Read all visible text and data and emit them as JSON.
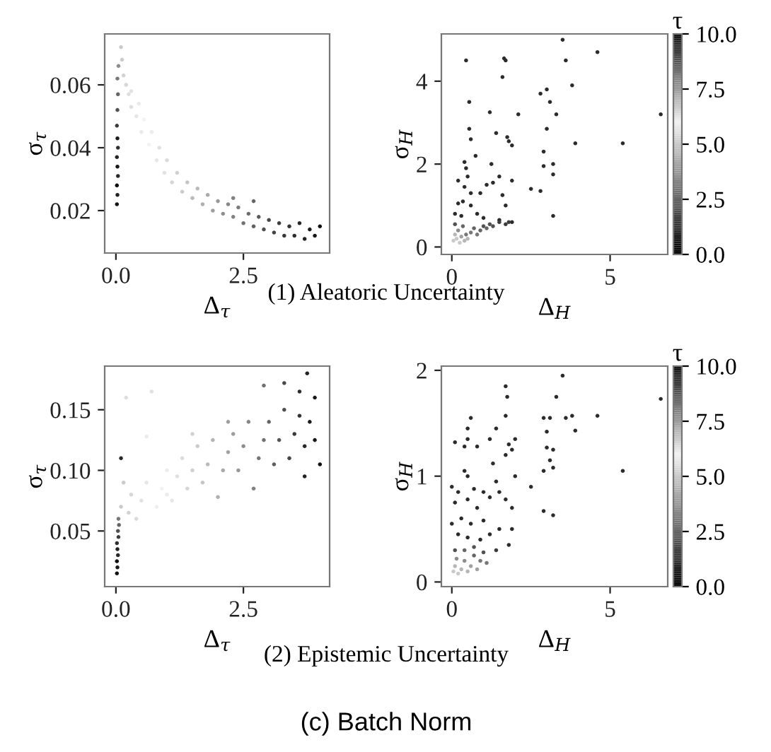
{
  "chart_data": [
    {
      "type": "scatter",
      "xlabel": "Δ$_{τ}$",
      "ylabel": "σ$_{τ}$",
      "annotations": [
        "(1) Aleatoric Uncertainty"
      ],
      "marker": "circle",
      "grid": false,
      "xlim": [
        -0.22,
        4.19
      ],
      "ylim": [
        0.0065,
        0.0762
      ],
      "xticks": [
        {
          "value": 0,
          "label": "0.0"
        },
        2.5
      ],
      "yticks": [
        0.02,
        0.04,
        0.06
      ],
      "x": [
        0.02,
        0.03,
        0.02,
        0.04,
        0.03,
        0.02,
        0.04,
        0.03,
        0.02,
        0.03,
        0.04,
        0.03,
        0.05,
        0.1,
        0.12,
        0.15,
        0.2,
        0.25,
        0.3,
        0.3,
        0.4,
        0.45,
        0.5,
        0.55,
        0.65,
        0.7,
        0.8,
        0.85,
        0.95,
        1.0,
        1.1,
        1.2,
        1.3,
        1.4,
        1.5,
        1.6,
        1.7,
        1.8,
        1.9,
        2.0,
        2.1,
        2.2,
        2.3,
        2.4,
        2.5,
        2.6,
        2.7,
        2.8,
        2.9,
        3.0,
        3.1,
        3.2,
        3.3,
        3.4,
        3.5,
        3.6,
        3.7,
        3.8,
        3.9,
        4.0,
        2.3,
        2.7
      ],
      "values": [
        0.022,
        0.025,
        0.028,
        0.031,
        0.034,
        0.037,
        0.04,
        0.043,
        0.047,
        0.052,
        0.057,
        0.062,
        0.066,
        0.072,
        0.068,
        0.063,
        0.06,
        0.057,
        0.053,
        0.058,
        0.05,
        0.054,
        0.045,
        0.049,
        0.041,
        0.045,
        0.036,
        0.04,
        0.032,
        0.036,
        0.029,
        0.032,
        0.026,
        0.029,
        0.024,
        0.027,
        0.022,
        0.025,
        0.02,
        0.023,
        0.019,
        0.022,
        0.018,
        0.021,
        0.016,
        0.019,
        0.015,
        0.018,
        0.014,
        0.017,
        0.013,
        0.016,
        0.012,
        0.015,
        0.012,
        0.016,
        0.011,
        0.014,
        0.012,
        0.015,
        0.024,
        0.023
      ],
      "colors": [
        "#141414",
        "#202020",
        "#0c0c0c",
        "#282828",
        "#181818",
        "#242424",
        "#303030",
        "#1c1c1c",
        "#3c3c3c",
        "#515151",
        "#656565",
        "#797979",
        "#8d8d8d",
        "#cacaca",
        "#cacaca",
        "#d2d2d2",
        "#d6d6d6",
        "#dedede",
        "#dedede",
        "#e2e2e2",
        "#e6e6e6",
        "#eaeaea",
        "#eaeaea",
        "#f2f2f2",
        "#f2f2f2",
        "#ececec",
        "#e7e7e7",
        "#e1e1e1",
        "#e1e1e1",
        "#dcdcdc",
        "#d6d6d6",
        "#d0d0d0",
        "#cbcbcb",
        "#c5c5c5",
        "#bababa",
        "#bababa",
        "#afafaf",
        "#a9a9a9",
        "#9e9e9e",
        "#989898",
        "#8d8d8d",
        "#878787",
        "#828282",
        "#7c7c7c",
        "#717171",
        "#6b6b6b",
        "#606060",
        "#5a5a5a",
        "#4f4f4f",
        "#494949",
        "#444444",
        "#3e3e3e",
        "#383838",
        "#333333",
        "#2d2d2d",
        "#272727",
        "#222222",
        "#1c1c1c",
        "#171717",
        "#111111",
        "#828282",
        "#656565"
      ]
    },
    {
      "type": "scatter",
      "xlabel": "Δ$_{H}$",
      "ylabel": "σ$_{H}$",
      "clabel": "τ",
      "marker": "circle",
      "grid": false,
      "xlim": [
        -0.33,
        6.82
      ],
      "ylim": [
        -0.18,
        5.14
      ],
      "xticks": [
        0,
        5
      ],
      "yticks": [
        0,
        2,
        4
      ],
      "clim": [
        0,
        10
      ],
      "cticks": [
        {
          "value": 0,
          "label": "0.0"
        },
        {
          "value": 2.5,
          "label": "2.5"
        },
        {
          "value": 5,
          "label": "5.0"
        },
        {
          "value": 7.5,
          "label": "7.5"
        },
        {
          "value": 10,
          "label": "10.0"
        }
      ],
      "x": [
        0.45,
        1.65,
        1.7,
        1.6,
        3.5,
        4.6,
        3.6,
        3.8,
        2.8,
        3.0,
        3.1,
        0.55,
        1.2,
        2.1,
        3.3,
        6.6,
        0.55,
        1.4,
        3.0,
        0.6,
        1.75,
        1.8,
        1.9,
        3.9,
        5.4,
        0.75,
        2.9,
        0.4,
        1.25,
        3.2,
        0.45,
        2.9,
        0.2,
        0.5,
        1.5,
        3.2,
        1.1,
        0.4,
        1.3,
        1.9,
        0.6,
        2.5,
        2.8,
        0.9,
        1.6,
        0.2,
        0.35,
        0.6,
        1.7,
        0.1,
        0.3,
        0.8,
        1.0,
        1.5,
        1.9,
        3.2,
        0.05,
        0.1,
        0.15,
        0.2,
        0.3,
        0.35,
        0.45,
        0.5,
        0.6,
        0.7,
        0.8,
        0.9,
        1.0,
        1.1,
        1.2,
        1.3,
        1.5,
        1.7,
        1.8,
        0.25,
        0.4,
        0.1
      ],
      "values": [
        4.5,
        4.55,
        4.5,
        4.1,
        5.0,
        4.7,
        4.5,
        3.9,
        3.7,
        3.8,
        3.5,
        3.5,
        3.25,
        3.2,
        3.2,
        3.2,
        2.85,
        2.75,
        2.85,
        2.6,
        2.65,
        2.55,
        2.45,
        2.5,
        2.5,
        2.2,
        2.3,
        2.05,
        2.0,
        2.0,
        1.9,
        1.95,
        1.6,
        1.7,
        1.7,
        1.75,
        1.5,
        1.45,
        1.55,
        1.6,
        1.3,
        1.4,
        1.35,
        1.3,
        1.25,
        1.05,
        1.1,
        1.0,
        1.0,
        0.8,
        0.75,
        0.8,
        0.7,
        0.65,
        0.6,
        0.75,
        0.15,
        0.3,
        0.2,
        0.4,
        0.25,
        0.5,
        0.3,
        0.2,
        0.35,
        0.45,
        0.3,
        0.4,
        0.5,
        0.45,
        0.55,
        0.5,
        0.6,
        0.55,
        0.6,
        0.1,
        0.15,
        0.55
      ],
      "cvalues": [
        9.5,
        9.5,
        9.5,
        9.5,
        9.5,
        9.5,
        9.5,
        9.5,
        9.5,
        9.5,
        9.5,
        9.5,
        9.5,
        9.5,
        9.5,
        9.5,
        9.5,
        9.5,
        9.5,
        9.5,
        9.5,
        9.5,
        9.5,
        9.5,
        9.5,
        9.5,
        9.5,
        9.5,
        9.5,
        9.5,
        9.5,
        9.5,
        9.5,
        9.5,
        9.5,
        9.5,
        9.5,
        9.5,
        9.5,
        9.5,
        9.5,
        9.5,
        9.5,
        9.5,
        9.5,
        9.5,
        9.5,
        9.5,
        9.5,
        9.5,
        9.5,
        9.5,
        9.5,
        9.5,
        9.5,
        9.5,
        5,
        4.5,
        5,
        3.5,
        4,
        2.5,
        3,
        4.5,
        3,
        2.5,
        3,
        2.5,
        2,
        2.5,
        2,
        2,
        1.5,
        1.5,
        1.5,
        5,
        4.5,
        2
      ]
    },
    {
      "type": "scatter",
      "xlabel": "Δ$_{τ}$",
      "ylabel": "σ$_{τ}$",
      "annotations": [
        "(2) Epistemic Uncertainty",
        "(c) Batch Norm"
      ],
      "marker": "circle",
      "grid": false,
      "xlim": [
        -0.22,
        4.19
      ],
      "ylim": [
        0.0041,
        0.186
      ],
      "xticks": [
        {
          "value": 0,
          "label": "0.0"
        },
        2.5
      ],
      "yticks": [
        0.05,
        {
          "value": 0.1,
          "label": "0.10"
        },
        0.15
      ],
      "x": [
        0.02,
        0.03,
        0.02,
        0.04,
        0.03,
        0.02,
        0.05,
        0.04,
        0.06,
        0.05,
        0.1,
        0.15,
        0.1,
        0.25,
        0.3,
        0.2,
        0.7,
        0.4,
        0.5,
        0.6,
        0.6,
        0.8,
        0.9,
        1.0,
        1.1,
        1.2,
        1.3,
        1.4,
        1.5,
        1.6,
        1.7,
        1.8,
        1.9,
        2.0,
        2.1,
        2.2,
        2.3,
        2.4,
        2.5,
        2.6,
        2.7,
        2.8,
        2.9,
        2.9,
        3.0,
        3.1,
        3.2,
        3.3,
        3.3,
        3.4,
        3.5,
        3.6,
        3.6,
        3.7,
        3.75,
        3.7,
        3.8,
        3.9,
        4.0,
        3.9,
        2.2,
        1.5,
        1.0
      ],
      "values": [
        0.015,
        0.02,
        0.025,
        0.03,
        0.035,
        0.04,
        0.045,
        0.05,
        0.055,
        0.06,
        0.07,
        0.09,
        0.11,
        0.065,
        0.08,
        0.16,
        0.165,
        0.06,
        0.075,
        0.09,
        0.128,
        0.07,
        0.085,
        0.1,
        0.075,
        0.095,
        0.11,
        0.085,
        0.1,
        0.12,
        0.09,
        0.105,
        0.125,
        0.078,
        0.1,
        0.115,
        0.13,
        0.1,
        0.12,
        0.14,
        0.085,
        0.11,
        0.125,
        0.17,
        0.14,
        0.105,
        0.125,
        0.15,
        0.172,
        0.11,
        0.13,
        0.145,
        0.165,
        0.12,
        0.18,
        0.095,
        0.14,
        0.16,
        0.105,
        0.125,
        0.14,
        0.13,
        0.08
      ],
      "colors": [
        "#141414",
        "#1c1c1c",
        "#101010",
        "#282828",
        "#202020",
        "#303030",
        "#3c3c3c",
        "#515151",
        "#656565",
        "#797979",
        "#cacaca",
        "#cacaca",
        "#282828",
        "#d2d2d2",
        "#d6d6d6",
        "#dedede",
        "#e2e2e2",
        "#dadada",
        "#e2e2e2",
        "#e6e6e6",
        "#eaeaea",
        "#eeeeee",
        "#f2f2f2",
        "#ececec",
        "#e7e7e7",
        "#e1e1e1",
        "#dcdcdc",
        "#d6d6d6",
        "#d0d0d0",
        "#cbcbcb",
        "#c5c5c5",
        "#bababa",
        "#b4b4b4",
        "#afafaf",
        "#a9a9a9",
        "#a3a3a3",
        "#9e9e9e",
        "#989898",
        "#8d8d8d",
        "#878787",
        "#828282",
        "#767676",
        "#717171",
        "#717171",
        "#656565",
        "#606060",
        "#555555",
        "#4f4f4f",
        "#494949",
        "#444444",
        "#383838",
        "#333333",
        "#2d2d2d",
        "#272727",
        "#222222",
        "#222222",
        "#1c1c1c",
        "#171717",
        "#111111",
        "#171717",
        "#9e9e9e",
        "#d0d0d0",
        "#ececec"
      ]
    },
    {
      "type": "scatter",
      "xlabel": "Δ$_{H}$",
      "ylabel": "σ$_{H}$",
      "clabel": "τ",
      "marker": "circle",
      "grid": false,
      "xlim": [
        -0.33,
        6.82
      ],
      "ylim": [
        -0.044,
        2.04
      ],
      "xticks": [
        0,
        5
      ],
      "yticks": [
        0,
        1,
        2
      ],
      "clim": [
        0,
        10
      ],
      "cticks": [
        {
          "value": 0,
          "label": "0.0"
        },
        {
          "value": 2.5,
          "label": "2.5"
        },
        {
          "value": 5,
          "label": "5.0"
        },
        {
          "value": 7.5,
          "label": "7.5"
        },
        {
          "value": 10,
          "label": "10.0"
        }
      ],
      "x": [
        3.5,
        1.7,
        1.75,
        3.3,
        6.6,
        0.6,
        1.7,
        2.9,
        3.1,
        3.6,
        3.8,
        4.6,
        3.9,
        0.5,
        1.4,
        3.0,
        0.1,
        0.5,
        1.2,
        1.8,
        2.0,
        0.4,
        0.8,
        1.7,
        1.9,
        3.0,
        3.2,
        1.3,
        3.1,
        0.4,
        3.2,
        2.9,
        5.4,
        0.5,
        2.0,
        1.4,
        0.0,
        2.5,
        0.2,
        0.7,
        1.0,
        1.5,
        0.1,
        0.5,
        1.2,
        1.7,
        0.8,
        1.9,
        2.9,
        3.2,
        0.0,
        0.3,
        0.6,
        1.0,
        1.5,
        1.9,
        0.2,
        0.5,
        0.9,
        1.2,
        1.8,
        0.1,
        0.4,
        0.7,
        1.0,
        1.4,
        0.05,
        0.1,
        0.2,
        0.3,
        0.4,
        0.5,
        0.6,
        0.8,
        0.9,
        1.1,
        0.15,
        0.7
      ],
      "values": [
        1.95,
        1.85,
        1.75,
        1.75,
        1.73,
        1.55,
        1.57,
        1.55,
        1.55,
        1.55,
        1.57,
        1.57,
        1.43,
        1.45,
        1.45,
        1.42,
        1.32,
        1.35,
        1.35,
        1.3,
        1.35,
        1.28,
        1.28,
        1.2,
        1.25,
        1.27,
        1.25,
        1.12,
        1.15,
        1.05,
        1.08,
        1.05,
        1.05,
        1.0,
        1.0,
        0.95,
        0.9,
        0.9,
        0.85,
        0.88,
        0.85,
        0.85,
        0.75,
        0.78,
        0.8,
        0.78,
        0.7,
        0.7,
        0.67,
        0.63,
        0.55,
        0.6,
        0.55,
        0.58,
        0.5,
        0.5,
        0.45,
        0.42,
        0.4,
        0.45,
        0.35,
        0.3,
        0.3,
        0.33,
        0.28,
        0.3,
        0.1,
        0.15,
        0.08,
        0.12,
        0.2,
        0.1,
        0.15,
        0.12,
        0.2,
        0.18,
        0.22,
        0.25
      ],
      "cvalues": [
        9.5,
        9.5,
        9.5,
        9.5,
        9.5,
        9.5,
        9.5,
        9.5,
        9.5,
        9.5,
        9.5,
        9.5,
        9.5,
        9.5,
        9.5,
        9.5,
        9.5,
        9.5,
        9.5,
        9.5,
        9.5,
        9.5,
        9.5,
        9.5,
        9.5,
        9.5,
        9.5,
        9.5,
        9.5,
        9.5,
        9.5,
        9.5,
        9.5,
        9.5,
        9.5,
        9.5,
        9.5,
        9.5,
        9.5,
        9.5,
        9.5,
        9.5,
        9.5,
        9.5,
        9.5,
        9.5,
        9.5,
        9.5,
        9.5,
        9.5,
        9.5,
        9.5,
        9.5,
        9.5,
        9.5,
        9.5,
        9.5,
        9.5,
        9.5,
        9.5,
        9.5,
        2,
        2.5,
        2,
        2,
        1.5,
        5,
        4.5,
        5,
        4.5,
        3.5,
        4.5,
        4,
        4,
        3,
        3,
        3.5,
        2.5
      ]
    }
  ]
}
